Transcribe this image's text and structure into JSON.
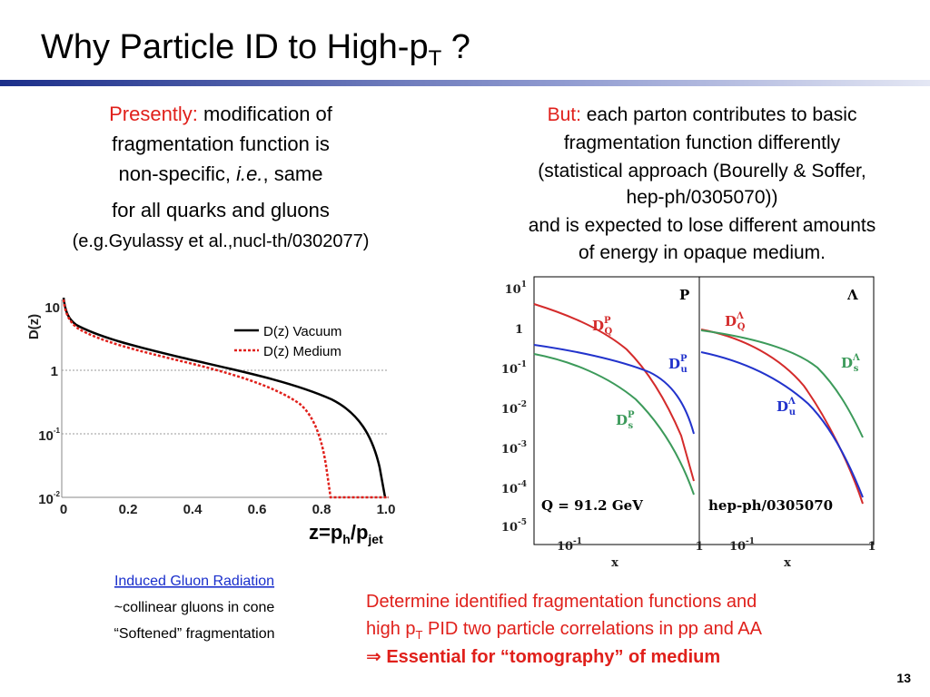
{
  "title": {
    "text": "Why Particle ID to High-p",
    "sub": "T",
    "end": " ?"
  },
  "left_text": {
    "line1_red": "Presently:",
    "line1": " modification of",
    "line2": "fragmentation function is",
    "line3a": "non-specific, ",
    "line3_italic": "i.e.",
    "line3b": ", same",
    "line4": "for all quarks and gluons",
    "line5": "(e.g.Gyulassy et al.,nucl-th/0302077)"
  },
  "right_text": {
    "line1_red": "But:",
    "line1": " each parton contributes to basic",
    "line2": "fragmentation function differently",
    "line3": "(statistical approach (Bourelly & Soffer,",
    "line4": "hep-ph/0305070))",
    "line5": "and is expected to lose different amounts",
    "line6": "of energy in opaque medium."
  },
  "left_plot": {
    "y_label": "D(z)",
    "x_label": {
      "a": "z=p",
      "b": "h",
      "c": "/p",
      "d": "jet"
    },
    "yticks": [
      {
        "base": "10",
        "exp": ""
      },
      {
        "base": "1",
        "exp": ""
      },
      {
        "base": "10",
        "exp": "-1"
      },
      {
        "base": "10",
        "exp": "-2"
      }
    ],
    "xticks": [
      "0",
      "0.2",
      "0.4",
      "0.6",
      "0.8",
      "1.0"
    ],
    "legend": [
      "D(z) Vacuum",
      "D(z) Medium"
    ]
  },
  "right_plot": {
    "yticks": [
      {
        "base": "10",
        "exp": "1"
      },
      {
        "base": "1",
        "exp": ""
      },
      {
        "base": "10",
        "exp": "-1"
      },
      {
        "base": "10",
        "exp": "-2"
      },
      {
        "base": "10",
        "exp": "-3"
      },
      {
        "base": "10",
        "exp": "-4"
      },
      {
        "base": "10",
        "exp": "-5"
      }
    ],
    "xticks": [
      {
        "base": "10",
        "exp": "-1"
      },
      {
        "base": "1",
        "exp": ""
      }
    ],
    "x_label": "x",
    "panel_left": {
      "tag": "P",
      "note": "Q = 91.2 GeV",
      "labels": [
        {
          "d": "D",
          "sub": "Q",
          "sup": "P"
        },
        {
          "d": "D",
          "sub": "u",
          "sup": "P"
        },
        {
          "d": "D",
          "sub": "s",
          "sup": "P"
        }
      ]
    },
    "panel_right": {
      "tag": "Λ",
      "note": "hep-ph/0305070",
      "labels": [
        {
          "d": "D",
          "sub": "Q",
          "sup": "Λ"
        },
        {
          "d": "D",
          "sub": "s",
          "sup": "Λ"
        },
        {
          "d": "D",
          "sub": "u",
          "sup": "Λ"
        }
      ]
    }
  },
  "bottom_left": {
    "link": "Induced Gluon Radiation",
    "line2": "~collinear gluons in cone",
    "line3": "“Softened” fragmentation"
  },
  "bottom_right": {
    "line1": "Determine identified fragmentation functions and",
    "line2a": "high p",
    "line2_sub": "T",
    "line2b": " PID two particle correlations in pp and AA",
    "line3": "⇒ Essential for “tomography” of medium"
  },
  "page_number": "13"
}
